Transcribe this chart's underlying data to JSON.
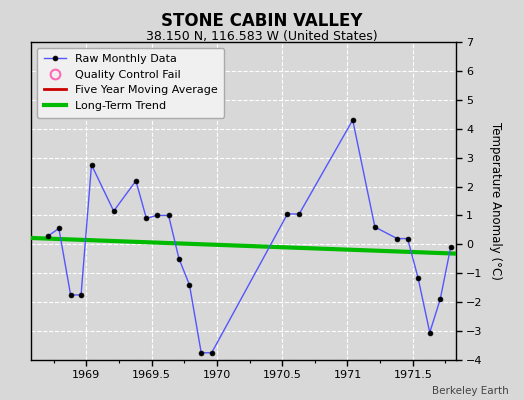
{
  "title": "STONE CABIN VALLEY",
  "subtitle": "38.150 N, 116.583 W (United States)",
  "credit": "Berkeley Earth",
  "ylabel": "Temperature Anomaly (°C)",
  "ylim": [
    -4,
    7
  ],
  "yticks": [
    -4,
    -3,
    -2,
    -1,
    0,
    1,
    2,
    3,
    4,
    5,
    6,
    7
  ],
  "xlim": [
    1968.58,
    1971.83
  ],
  "raw_x": [
    1968.71,
    1968.79,
    1968.88,
    1968.96,
    1969.04,
    1969.21,
    1969.38,
    1969.46,
    1969.54,
    1969.63,
    1969.71,
    1969.79,
    1969.88,
    1969.96,
    1970.54,
    1970.63,
    1971.04,
    1971.21,
    1971.38,
    1971.46,
    1971.54,
    1971.63,
    1971.71,
    1971.79
  ],
  "raw_y": [
    0.3,
    0.55,
    -1.75,
    -1.75,
    2.75,
    1.15,
    2.2,
    0.9,
    1.0,
    1.0,
    -0.5,
    -1.4,
    -3.75,
    -3.75,
    1.05,
    1.05,
    4.3,
    0.6,
    0.2,
    0.2,
    -1.15,
    -3.05,
    -1.9,
    -0.1
  ],
  "trend_x": [
    1968.58,
    1971.83
  ],
  "trend_y": [
    0.22,
    -0.32
  ],
  "line_color": "#5555ff",
  "marker_color": "#000000",
  "qc_color": "#ff69b4",
  "moving_avg_color": "#cc0000",
  "trend_color": "#00bb00",
  "bg_color": "#d8d8d8",
  "plot_bg_color": "#d8d8d8",
  "legend_facecolor": "#f0f0f0"
}
